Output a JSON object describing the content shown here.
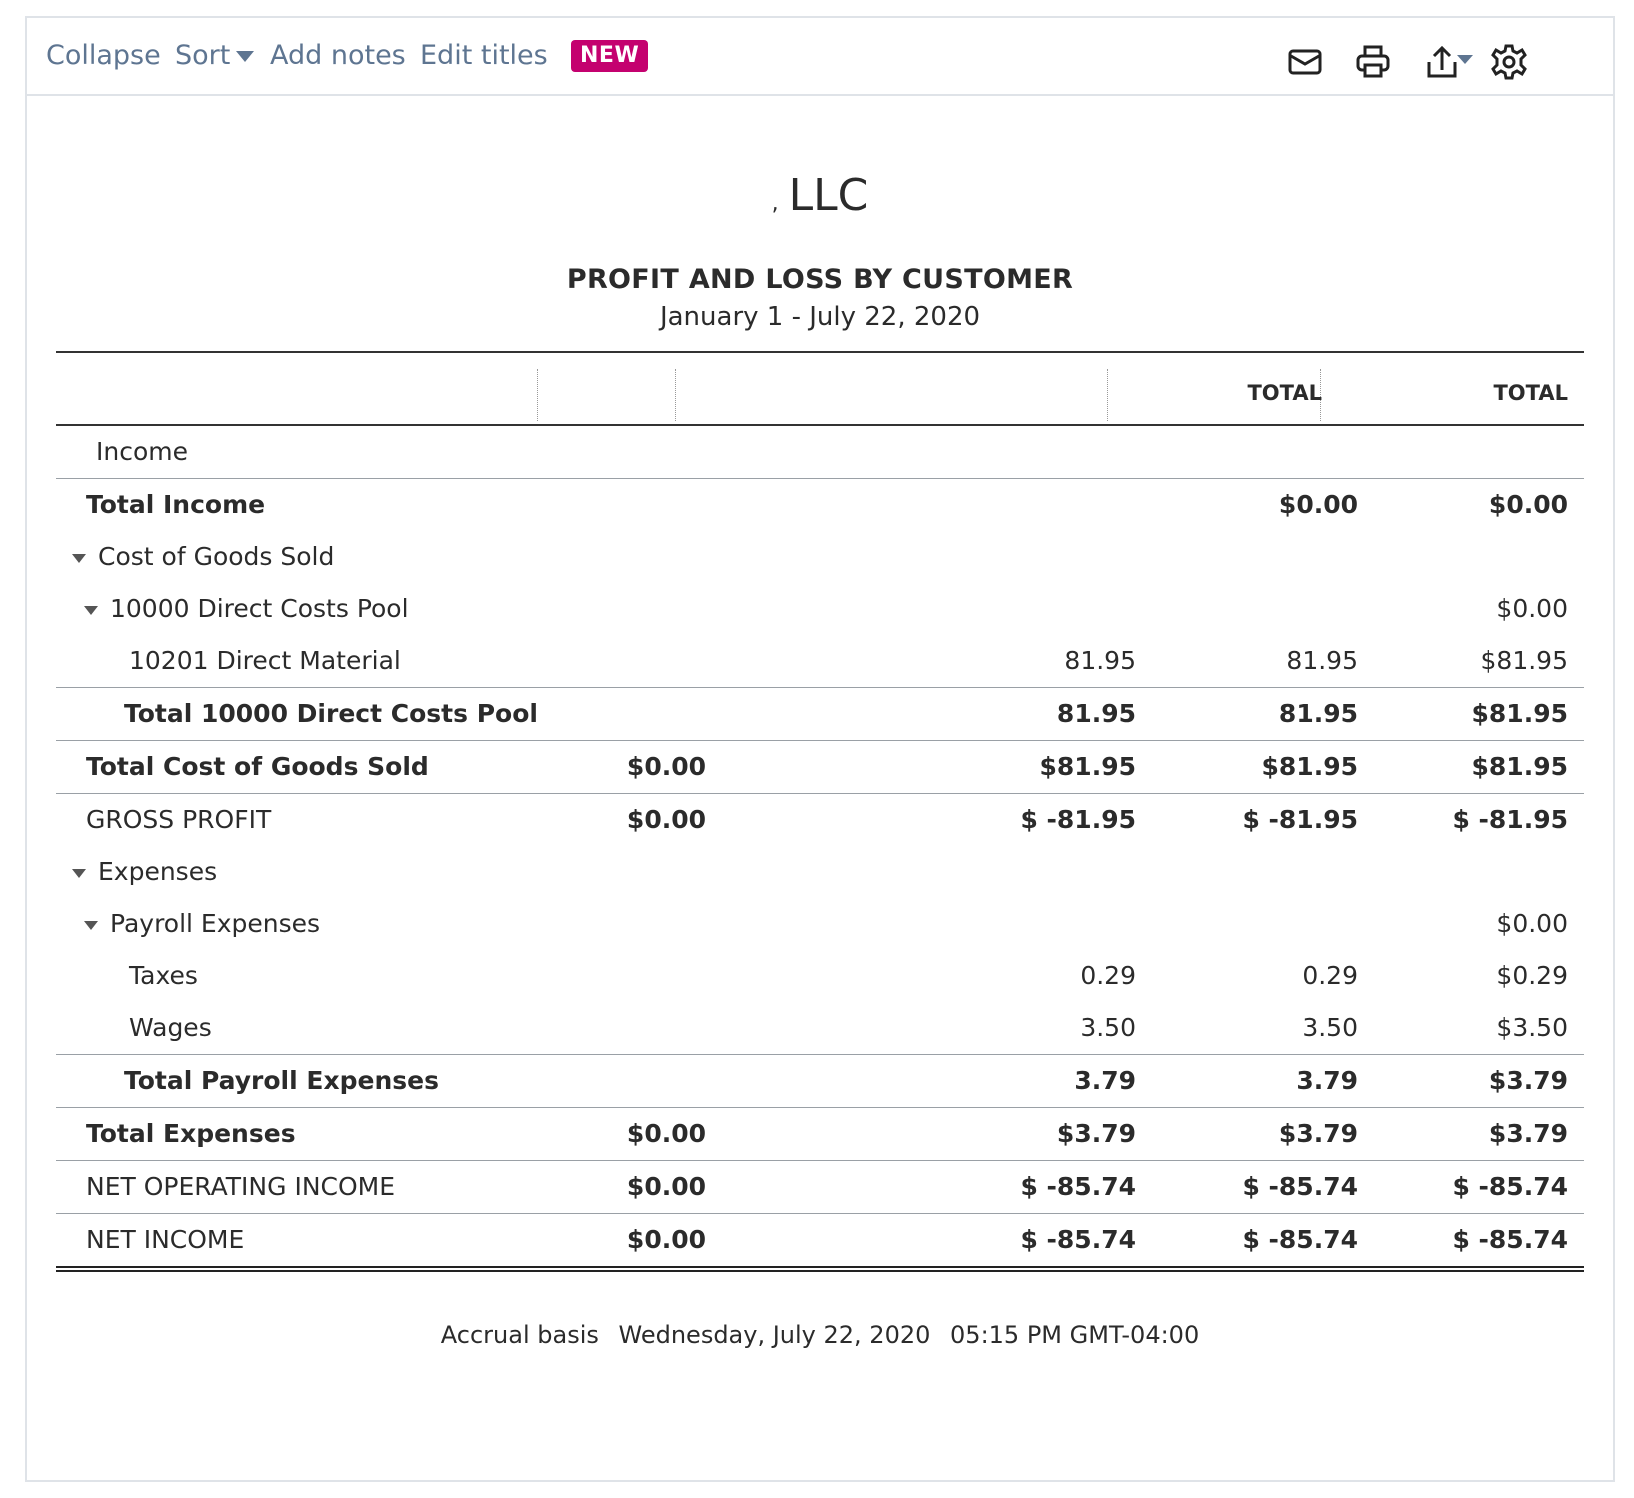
{
  "toolbar": {
    "collapse": "Collapse",
    "sort": "Sort",
    "add_notes": "Add notes",
    "edit_titles": "Edit titles",
    "new_badge": "NEW",
    "icons": [
      "mail-icon",
      "print-icon",
      "export-icon",
      "gear-icon"
    ]
  },
  "report": {
    "company": "LLC",
    "company_prefix": ",",
    "title": "PROFIT AND LOSS BY CUSTOMER",
    "date_range": "January 1 - July 22, 2020",
    "headers": [
      "",
      "",
      "TOTAL",
      "TOTAL"
    ],
    "rows": [
      {
        "label": "Income",
        "v": [
          "",
          "",
          "",
          ""
        ]
      },
      {
        "label": "Total Income",
        "v": [
          "",
          "",
          "$0.00",
          "$0.00"
        ]
      },
      {
        "label": "Cost of Goods Sold",
        "v": [
          "",
          "",
          "",
          ""
        ]
      },
      {
        "label": "10000 Direct Costs Pool",
        "v": [
          "",
          "",
          "",
          "$0.00"
        ]
      },
      {
        "label": "10201 Direct Material",
        "v": [
          "",
          "81.95",
          "81.95",
          "$81.95"
        ]
      },
      {
        "label": "Total 10000 Direct Costs Pool",
        "v": [
          "",
          "81.95",
          "81.95",
          "$81.95"
        ]
      },
      {
        "label": "Total Cost of Goods Sold",
        "v": [
          "$0.00",
          "$81.95",
          "$81.95",
          "$81.95"
        ]
      },
      {
        "label": "GROSS PROFIT",
        "v": [
          "$0.00",
          "$ -81.95",
          "$ -81.95",
          "$ -81.95"
        ]
      },
      {
        "label": "Expenses",
        "v": [
          "",
          "",
          "",
          ""
        ]
      },
      {
        "label": "Payroll Expenses",
        "v": [
          "",
          "",
          "",
          "$0.00"
        ]
      },
      {
        "label": "Taxes",
        "v": [
          "",
          "0.29",
          "0.29",
          "$0.29"
        ]
      },
      {
        "label": "Wages",
        "v": [
          "",
          "3.50",
          "3.50",
          "$3.50"
        ]
      },
      {
        "label": "Total Payroll Expenses",
        "v": [
          "",
          "3.79",
          "3.79",
          "$3.79"
        ]
      },
      {
        "label": "Total Expenses",
        "v": [
          "$0.00",
          "$3.79",
          "$3.79",
          "$3.79"
        ]
      },
      {
        "label": "NET OPERATING INCOME",
        "v": [
          "$0.00",
          "$ -85.74",
          "$ -85.74",
          "$ -85.74"
        ]
      },
      {
        "label": "NET INCOME",
        "v": [
          "$0.00",
          "$ -85.74",
          "$ -85.74",
          "$ -85.74"
        ]
      }
    ]
  },
  "footer": {
    "basis": "Accrual basis",
    "date": "Wednesday, July 22, 2020",
    "time": "05:15 PM GMT-04:00"
  },
  "colors": {
    "toolbar_text": "#5e7591",
    "badge": "#c4016f",
    "border": "#dfe3e8"
  }
}
